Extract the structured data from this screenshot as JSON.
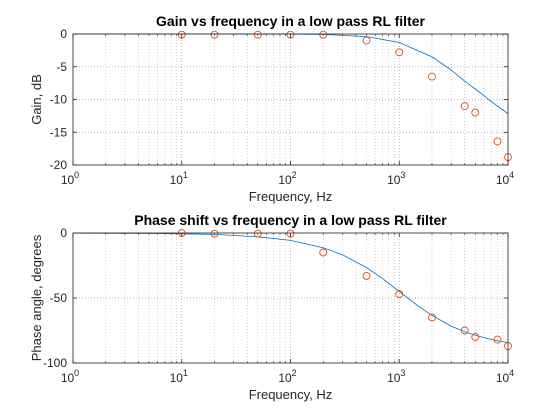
{
  "chart_data": [
    {
      "type": "line",
      "title": "Gain vs frequency in a low pass RL filter",
      "xlabel": "Frequency, Hz",
      "ylabel": "Gain, dB",
      "xscale": "log",
      "xlim": [
        1,
        10000
      ],
      "ylim": [
        -20,
        0
      ],
      "xticks": [
        1,
        10,
        100,
        1000,
        10000
      ],
      "xtick_labels": [
        {
          "base": "10",
          "exp": "0"
        },
        {
          "base": "10",
          "exp": "1"
        },
        {
          "base": "10",
          "exp": "2"
        },
        {
          "base": "10",
          "exp": "3"
        },
        {
          "base": "10",
          "exp": "4"
        }
      ],
      "yticks": [
        0,
        -5,
        -10,
        -15,
        -20
      ],
      "ytick_labels": [
        "0",
        "-5",
        "-10",
        "-15",
        "-20"
      ],
      "grid": true,
      "series": [
        {
          "style": "line",
          "color": "#0072BD",
          "x": [
            1,
            10,
            100,
            200,
            500,
            1000,
            2000,
            3000,
            4000,
            5000,
            6000,
            7000,
            8000,
            9000,
            10000
          ],
          "y": [
            0,
            0,
            -0.02,
            -0.06,
            -0.4,
            -1.3,
            -3.5,
            -5.5,
            -7.2,
            -8.4,
            -9.4,
            -10.3,
            -11.0,
            -11.6,
            -12.2
          ]
        },
        {
          "style": "markers",
          "color": "#D95319",
          "x": [
            10,
            20,
            50,
            100,
            200,
            500,
            1000,
            2000,
            4000,
            5000,
            8000,
            10000
          ],
          "y": [
            -0.1,
            -0.1,
            -0.1,
            -0.1,
            -0.1,
            -1.0,
            -2.8,
            -6.5,
            -11.0,
            -12.0,
            -16.4,
            -18.8
          ]
        }
      ]
    },
    {
      "type": "line",
      "title": "Phase shift vs frequency in a low pass RL filter",
      "xlabel": "Frequency, Hz",
      "ylabel": "Phase angle, degrees",
      "xscale": "log",
      "xlim": [
        1,
        10000
      ],
      "ylim": [
        -100,
        0
      ],
      "xticks": [
        1,
        10,
        100,
        1000,
        10000
      ],
      "xtick_labels": [
        {
          "base": "10",
          "exp": "0"
        },
        {
          "base": "10",
          "exp": "1"
        },
        {
          "base": "10",
          "exp": "2"
        },
        {
          "base": "10",
          "exp": "3"
        },
        {
          "base": "10",
          "exp": "4"
        }
      ],
      "yticks": [
        0,
        -50,
        -100
      ],
      "ytick_labels": [
        "0",
        "-50",
        "-100"
      ],
      "grid": true,
      "series": [
        {
          "style": "line",
          "color": "#0072BD",
          "x": [
            1,
            5,
            10,
            20,
            50,
            100,
            200,
            300,
            500,
            700,
            1000,
            1500,
            2000,
            3000,
            4000,
            5000,
            7000,
            10000
          ],
          "y": [
            -0.1,
            -0.3,
            -0.6,
            -1.1,
            -2.9,
            -5.7,
            -11.3,
            -16.7,
            -26.6,
            -34.9,
            -45.0,
            -56.3,
            -63.4,
            -71.6,
            -76.0,
            -78.7,
            -81.9,
            -84.3
          ]
        },
        {
          "style": "markers",
          "color": "#D95319",
          "x": [
            10,
            20,
            50,
            100,
            200,
            500,
            1000,
            2000,
            4000,
            5000,
            8000,
            10000
          ],
          "y": [
            0,
            -0.5,
            -0.5,
            -0.5,
            -15,
            -33,
            -47,
            -65,
            -75,
            -80,
            -82,
            -87
          ]
        }
      ]
    }
  ]
}
